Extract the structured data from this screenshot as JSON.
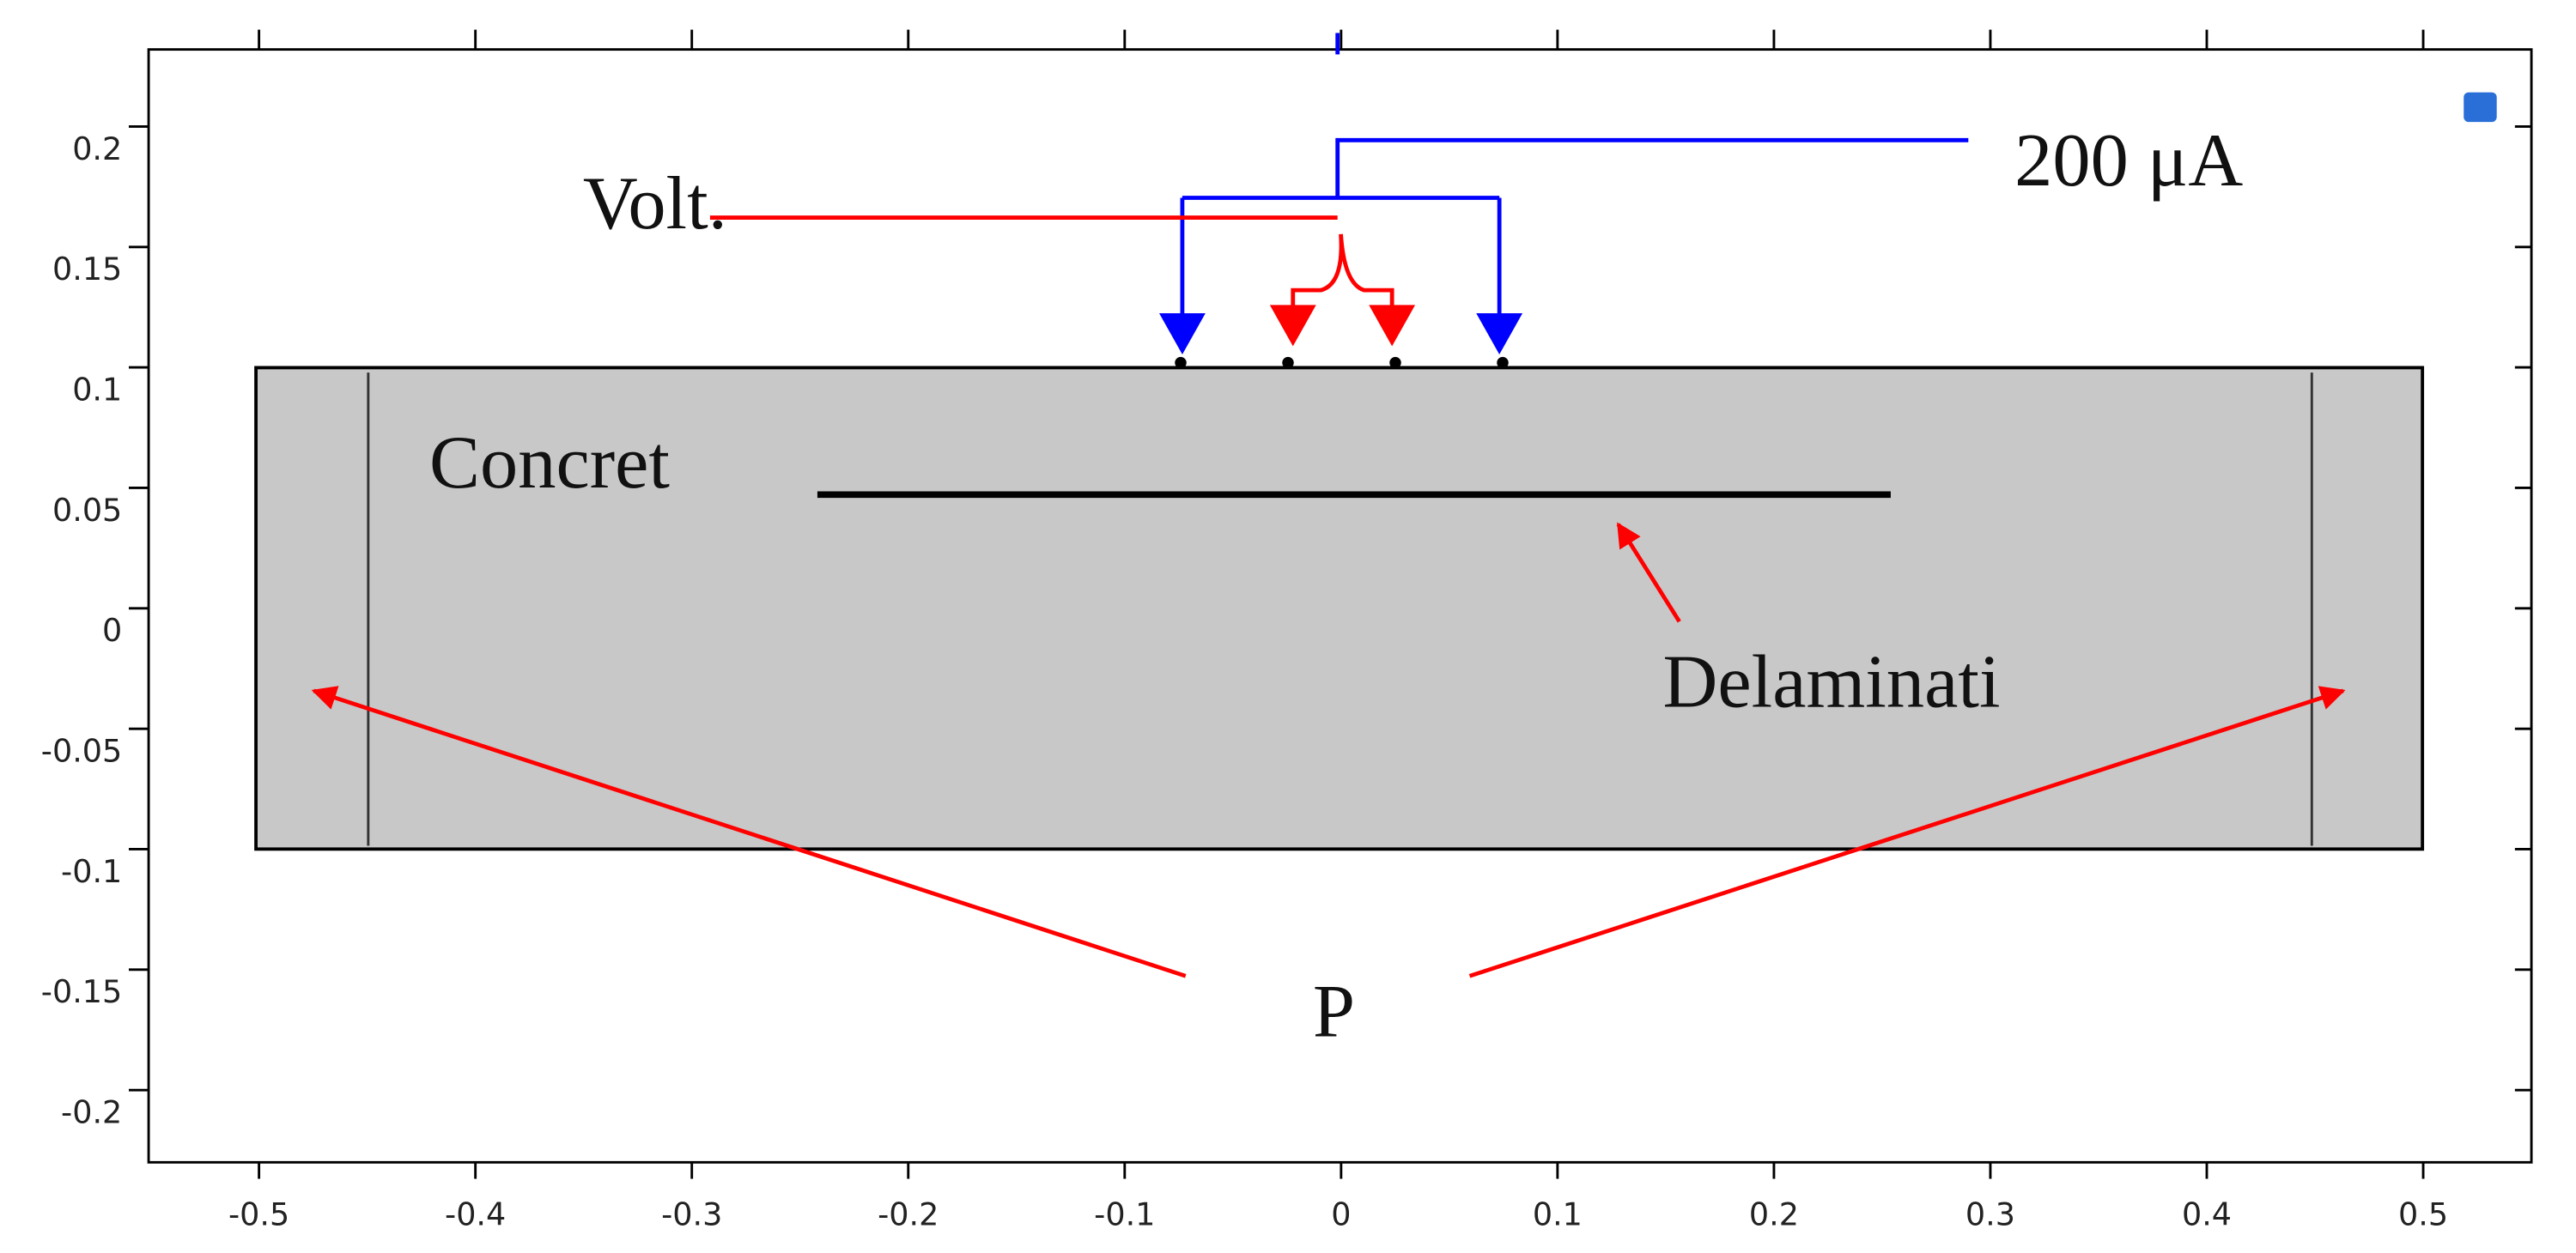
{
  "axes": {
    "xlim": [
      -0.551,
      0.55
    ],
    "ylim": [
      -0.23,
      0.232
    ],
    "xticks": [
      -0.5,
      -0.4,
      -0.3,
      -0.2,
      -0.1,
      0,
      0.1,
      0.2,
      0.3,
      0.4,
      0.5
    ],
    "yticks": [
      -0.2,
      -0.15,
      -0.1,
      -0.05,
      0,
      0.05,
      0.1,
      0.15,
      0.2
    ]
  },
  "labels": {
    "voltage": "Volt.",
    "current": "200 μA",
    "concrete": "Concret",
    "delamination": "Delaminati",
    "probes": "P"
  }
}
